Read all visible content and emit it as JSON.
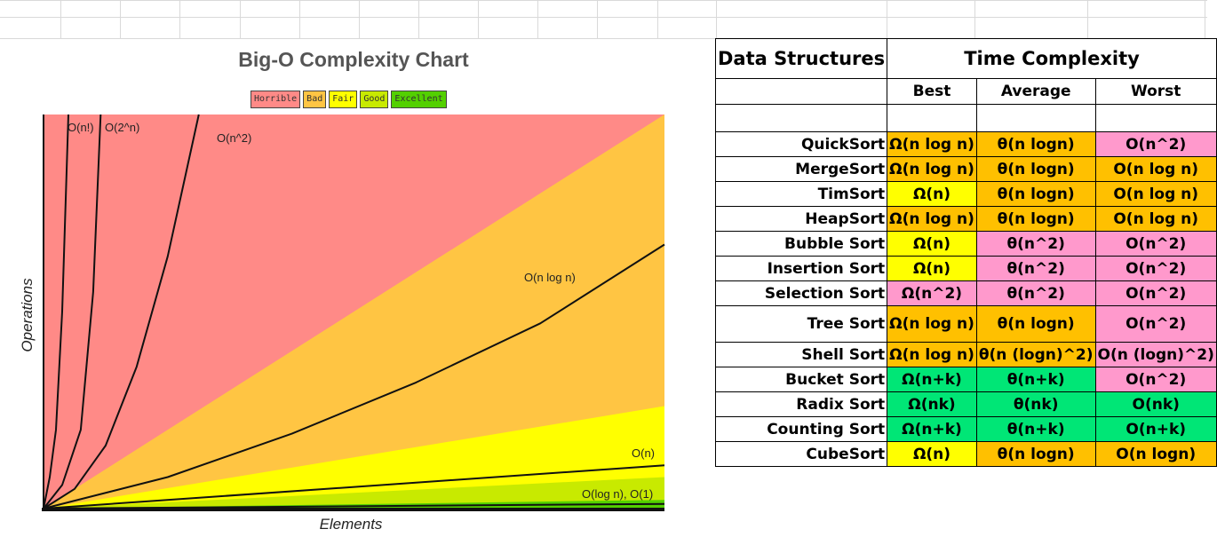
{
  "chart": {
    "title": "Big-O Complexity Chart",
    "legend": [
      {
        "label": "Horrible",
        "color": "#ff8a87"
      },
      {
        "label": "Bad",
        "color": "#ffc543"
      },
      {
        "label": "Fair",
        "color": "#ffff00"
      },
      {
        "label": "Good",
        "color": "#c8ea00"
      },
      {
        "label": "Excellent",
        "color": "#53d000"
      }
    ],
    "ylabel": "Operations",
    "xlabel": "Elements"
  },
  "chart_data": {
    "type": "area",
    "title": "Big-O Complexity Chart",
    "xlabel": "Elements",
    "ylabel": "Operations",
    "xlim": [
      0,
      100
    ],
    "ylim": [
      0,
      100
    ],
    "grid": false,
    "legend_position": "top",
    "regions": [
      {
        "name": "Horrible",
        "color": "#ff8a87"
      },
      {
        "name": "Bad",
        "color": "#ffc543"
      },
      {
        "name": "Fair",
        "color": "#ffff00"
      },
      {
        "name": "Good",
        "color": "#c8ea00"
      },
      {
        "name": "Excellent",
        "color": "#53d000"
      }
    ],
    "series": [
      {
        "name": "O(n!)",
        "label": "O(n!)",
        "x": [
          0,
          1,
          2,
          3,
          4
        ],
        "y": [
          0,
          8,
          20,
          50,
          100
        ]
      },
      {
        "name": "O(2^n)",
        "label": "O(2^n)",
        "x": [
          0,
          3,
          6,
          8,
          9.2
        ],
        "y": [
          0,
          6,
          20,
          55,
          100
        ]
      },
      {
        "name": "O(n^2)",
        "label": "O(n^2)",
        "x": [
          0,
          5,
          10,
          15,
          20,
          25
        ],
        "y": [
          0,
          5,
          16,
          36,
          64,
          100
        ]
      },
      {
        "name": "O(n log n)",
        "label": "O(n log n)",
        "x": [
          0,
          20,
          40,
          60,
          80,
          100
        ],
        "y": [
          0,
          8,
          19,
          32,
          47,
          67
        ]
      },
      {
        "name": "O(n)",
        "label": "O(n)",
        "x": [
          0,
          100
        ],
        "y": [
          0,
          11
        ]
      },
      {
        "name": "O(log n), O(1)",
        "label": "O(log n), O(1)",
        "x": [
          0,
          100
        ],
        "y": [
          0,
          1.2
        ]
      }
    ]
  },
  "table": {
    "header": {
      "col1": "Data Structures",
      "col2": "Time Complexity"
    },
    "subheader": {
      "best": "Best",
      "average": "Average",
      "worst": "Worst"
    },
    "rows": [
      {
        "name": "QuickSort",
        "best": "Ω(n log n)",
        "average": "θ(n logn)",
        "worst": "O(n^2)"
      },
      {
        "name": "MergeSort",
        "best": "Ω(n log n)",
        "average": "θ(n logn)",
        "worst": "O(n log n)"
      },
      {
        "name": "TimSort",
        "best": "Ω(n)",
        "average": "θ(n logn)",
        "worst": "O(n log n)"
      },
      {
        "name": "HeapSort",
        "best": "Ω(n log n)",
        "average": "θ(n logn)",
        "worst": "O(n log n)"
      },
      {
        "name": "Bubble Sort",
        "best": "Ω(n)",
        "average": "θ(n^2)",
        "worst": "O(n^2)"
      },
      {
        "name": "Insertion Sort",
        "best": "Ω(n)",
        "average": "θ(n^2)",
        "worst": "O(n^2)"
      },
      {
        "name": "Selection Sort",
        "best": "Ω(n^2)",
        "average": "θ(n^2)",
        "worst": "O(n^2)"
      },
      {
        "name": "Tree Sort",
        "best": "Ω(n log n)",
        "average": "θ(n logn)",
        "worst": "O(n^2)"
      },
      {
        "name": "Shell Sort",
        "best": "Ω(n log n)",
        "average": "θ(n (logn)^2)",
        "worst": "O(n (logn)^2)"
      },
      {
        "name": "Bucket Sort",
        "best": "Ω(n+k)",
        "average": "θ(n+k)",
        "worst": "O(n^2)"
      },
      {
        "name": "Radix Sort",
        "best": "Ω(nk)",
        "average": "θ(nk)",
        "worst": "O(nk)"
      },
      {
        "name": "Counting Sort",
        "best": "Ω(n+k)",
        "average": "θ(n+k)",
        "worst": "O(n+k)"
      },
      {
        "name": "CubeSort",
        "best": "Ω(n)",
        "average": "θ(n logn)",
        "worst": "O(n logn)"
      }
    ],
    "colors": {
      "Horrible": "#ff99cc",
      "Bad": "#ffc000",
      "Fair": "#ffff00",
      "Good": "#00e676"
    },
    "ratings": [
      [
        "Bad",
        "Bad",
        "Horrible"
      ],
      [
        "Bad",
        "Bad",
        "Bad"
      ],
      [
        "Fair",
        "Bad",
        "Bad"
      ],
      [
        "Bad",
        "Bad",
        "Bad"
      ],
      [
        "Fair",
        "Horrible",
        "Horrible"
      ],
      [
        "Fair",
        "Horrible",
        "Horrible"
      ],
      [
        "Horrible",
        "Horrible",
        "Horrible"
      ],
      [
        "Bad",
        "Bad",
        "Horrible"
      ],
      [
        "Bad",
        "Bad",
        "Horrible"
      ],
      [
        "Good",
        "Good",
        "Horrible"
      ],
      [
        "Good",
        "Good",
        "Good"
      ],
      [
        "Good",
        "Good",
        "Good"
      ],
      [
        "Fair",
        "Bad",
        "Bad"
      ]
    ]
  }
}
